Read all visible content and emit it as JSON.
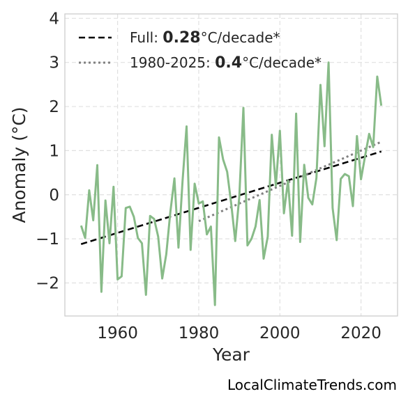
{
  "chart_data": {
    "type": "line",
    "xlabel": "Year",
    "ylabel": "Anomaly (°C)",
    "xlim": [
      1947,
      2029
    ],
    "ylim": [
      -2.75,
      4.1
    ],
    "xticks": [
      1960,
      1980,
      2000,
      2020
    ],
    "yticks": [
      -2,
      -1,
      0,
      1,
      2,
      3,
      4
    ],
    "grid": true,
    "legend_position": "top-left",
    "series": [
      {
        "color": "#88bb88",
        "x": [
          1951,
          1952,
          1953,
          1954,
          1955,
          1956,
          1957,
          1958,
          1959,
          1960,
          1961,
          1962,
          1963,
          1964,
          1965,
          1966,
          1967,
          1968,
          1969,
          1970,
          1971,
          1972,
          1973,
          1974,
          1975,
          1976,
          1977,
          1978,
          1979,
          1980,
          1981,
          1982,
          1983,
          1984,
          1985,
          1986,
          1987,
          1988,
          1989,
          1990,
          1991,
          1992,
          1993,
          1994,
          1995,
          1996,
          1997,
          1998,
          1999,
          2000,
          2001,
          2002,
          2003,
          2004,
          2005,
          2006,
          2007,
          2008,
          2009,
          2010,
          2011,
          2012,
          2013,
          2014,
          2015,
          2016,
          2017,
          2018,
          2019,
          2020,
          2021,
          2022,
          2023,
          2024,
          2025
        ],
        "y": [
          -0.7,
          -0.98,
          0.1,
          -0.58,
          0.67,
          -2.2,
          -0.13,
          -1.1,
          0.18,
          -1.92,
          -1.85,
          -0.3,
          -0.27,
          -0.5,
          -0.98,
          -1.1,
          -2.27,
          -0.48,
          -0.55,
          -0.95,
          -1.9,
          -1.35,
          -0.4,
          0.37,
          -1.2,
          0.3,
          1.55,
          -1.25,
          0.25,
          -0.2,
          -0.15,
          -0.9,
          -0.72,
          -2.5,
          1.3,
          0.8,
          0.52,
          -0.2,
          -1.05,
          -0.05,
          1.97,
          -1.15,
          -1.0,
          -0.72,
          -0.12,
          -1.45,
          -0.95,
          1.36,
          0.2,
          1.45,
          -0.42,
          0.32,
          -0.93,
          1.84,
          -1.07,
          0.68,
          -0.07,
          -0.22,
          0.38,
          2.49,
          1.1,
          3.0,
          -0.3,
          -1.03,
          0.36,
          0.47,
          0.42,
          -0.26,
          1.33,
          0.35,
          0.88,
          1.38,
          1.08,
          2.68,
          2.02
        ]
      }
    ],
    "trends": [
      {
        "label_prefix": "Full: ",
        "label_value": "0.28",
        "label_suffix": "°C/decade*",
        "style": "dashed",
        "color": "#000000",
        "x": [
          1951,
          2025
        ],
        "y": [
          -1.12,
          0.98
        ]
      },
      {
        "label_prefix": "1980-2025: ",
        "label_value": "0.4",
        "label_suffix": "°C/decade*",
        "style": "dotted",
        "color": "#808080",
        "x": [
          1980,
          2025
        ],
        "y": [
          -0.6,
          1.2
        ]
      }
    ]
  },
  "credit": "LocalClimateTrends.com"
}
